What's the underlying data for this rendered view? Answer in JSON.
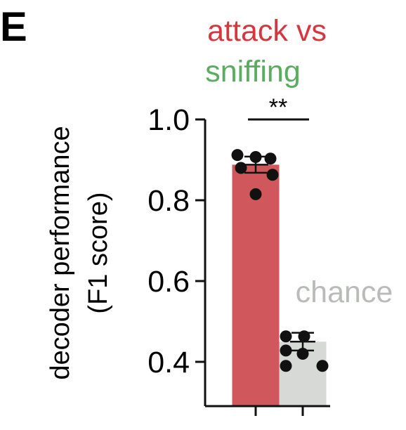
{
  "panel_letter": "E",
  "title_line1": "attack vs",
  "title_line2": "sniffing",
  "colors": {
    "attack": "#d6363f",
    "sniffing": "#5aad5e",
    "bar_attack": "#d0585c",
    "bar_chance": "#d7d9d7",
    "chance_label": "#b9bbb9",
    "axis": "#111111",
    "dot": "#111111"
  },
  "chart_data": {
    "type": "bar",
    "title": "attack vs sniffing",
    "ylabel_line1": "decoder performance",
    "ylabel_line2": "(F1 score)",
    "ylim": [
      0.35,
      1.0
    ],
    "yticks": [
      0.4,
      0.6,
      0.8,
      1.0
    ],
    "ytick_labels": [
      "0.4",
      "0.6",
      "0.8",
      "1.0"
    ],
    "categories": [
      "attack vs sniffing",
      "chance"
    ],
    "values": [
      0.888,
      0.45
    ],
    "sem": [
      0.02,
      0.022
    ],
    "points": [
      [
        0.912,
        0.903,
        0.907,
        0.88,
        0.863,
        0.815
      ],
      [
        0.463,
        0.463,
        0.428,
        0.42,
        0.39,
        0.39
      ]
    ],
    "annotations": {
      "significance": "**",
      "chance_label": "chance"
    },
    "grid": false
  }
}
